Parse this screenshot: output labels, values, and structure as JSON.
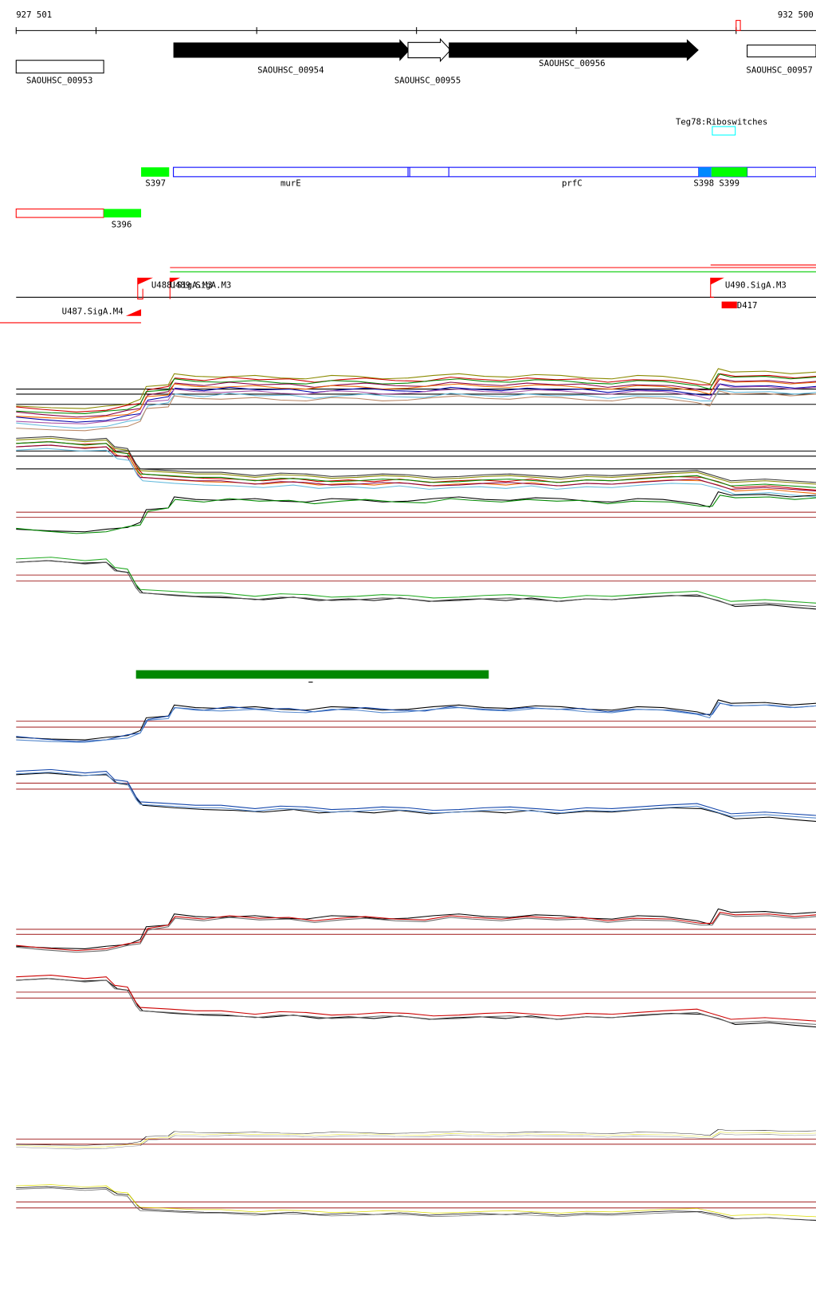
{
  "ruler": {
    "start": "927 501",
    "end": "932 500"
  },
  "genes": [
    {
      "label": "SAOUHSC_00953"
    },
    {
      "label": "SAOUHSC_00954"
    },
    {
      "label": "SAOUHSC_00955"
    },
    {
      "label": "SAOUHSC_00956"
    },
    {
      "label": "SAOUHSC_00957"
    }
  ],
  "riboswitch": "Teg78:Riboswitches",
  "features": [
    "S397",
    "murE",
    "prfC",
    "S398",
    "S399",
    "S396"
  ],
  "promoters": [
    "U488.SigA.M3",
    "U489.SigA.M3",
    "U487.SigA.M4",
    "U490.SigA.M3"
  ],
  "terminators": [
    "D417"
  ]
}
